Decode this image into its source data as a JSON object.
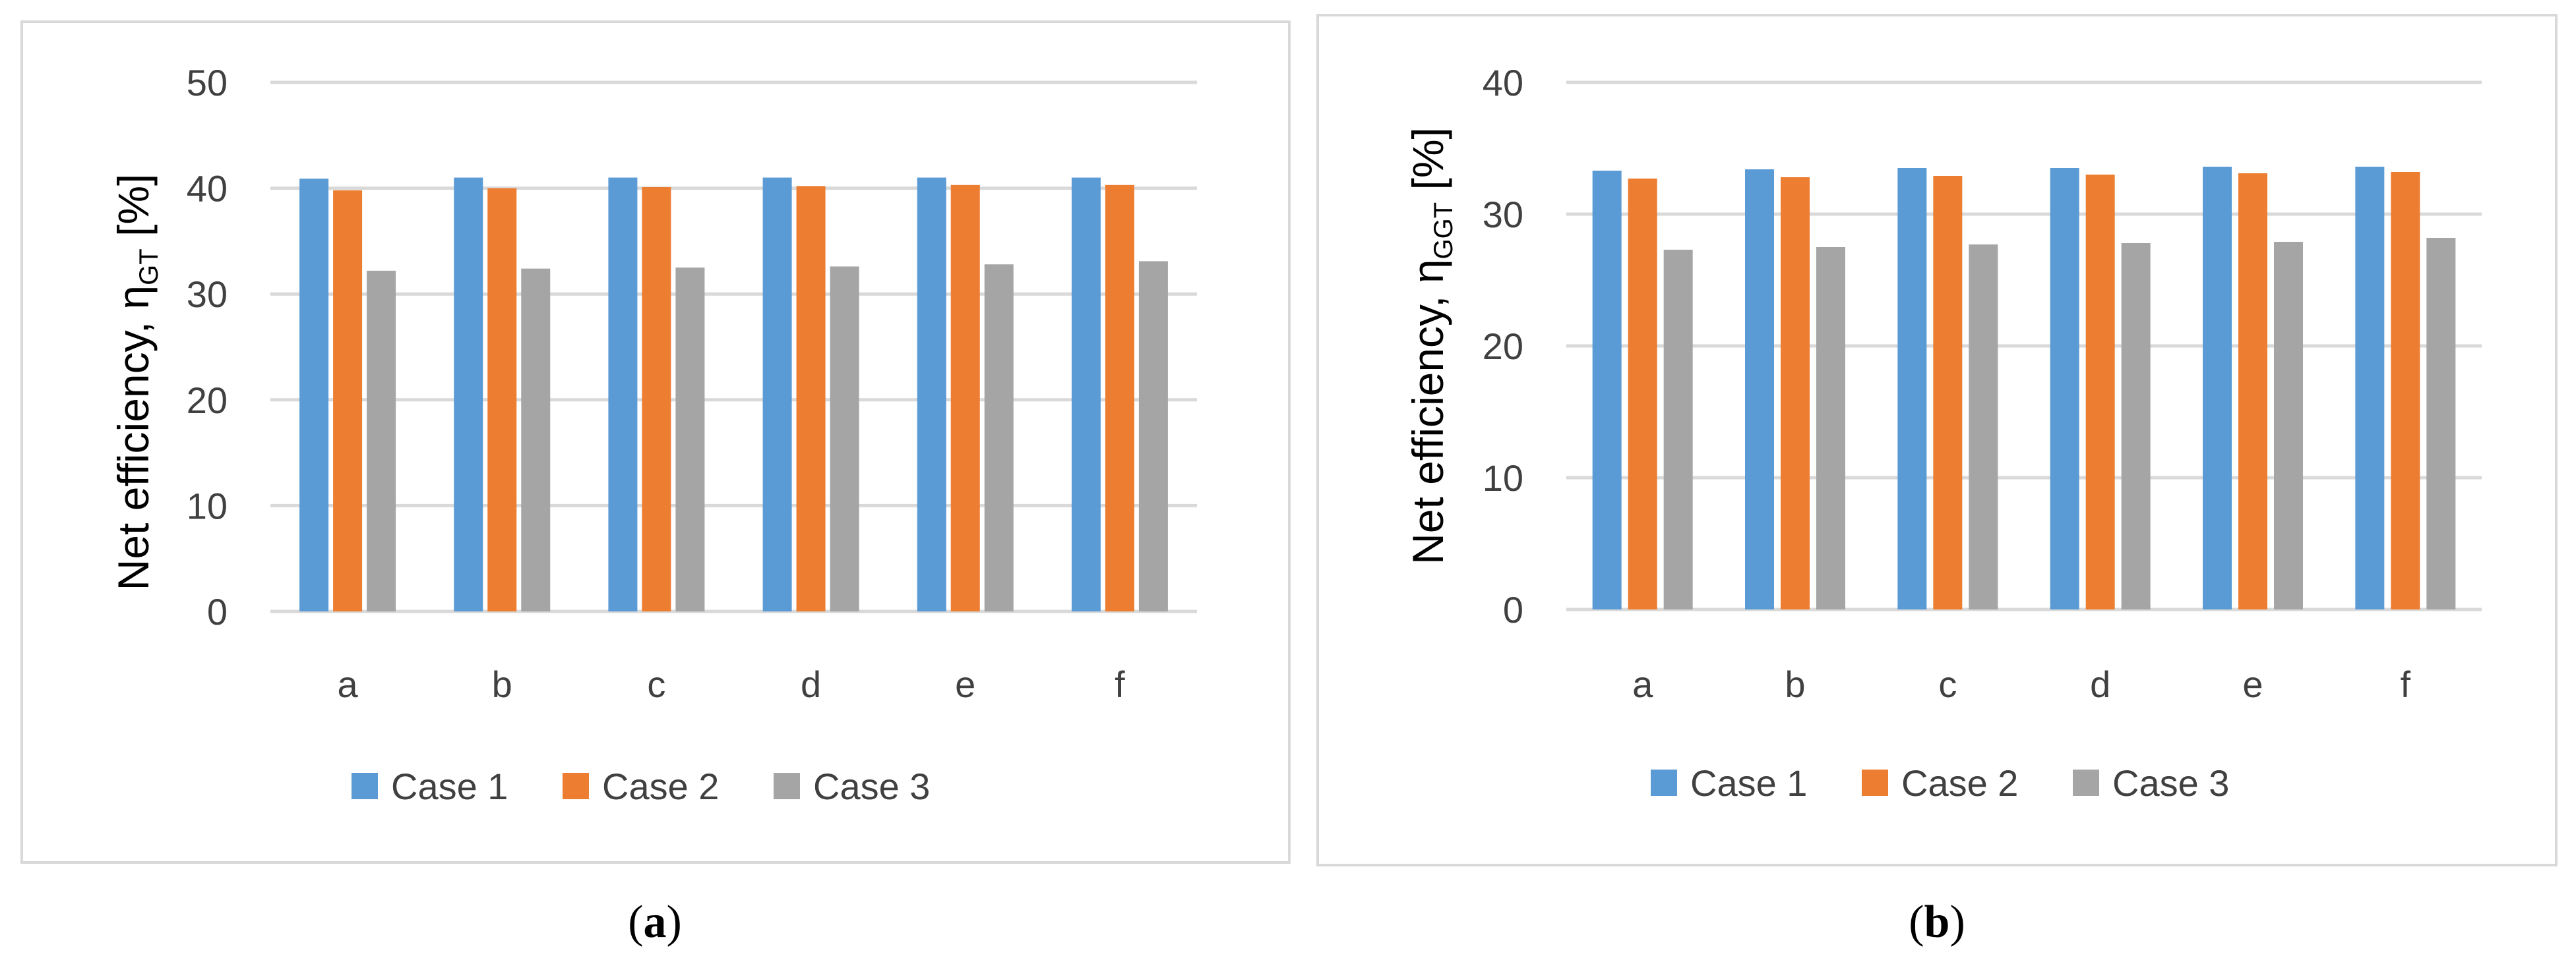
{
  "figure": {
    "panels": [
      {
        "caption_open": "(",
        "caption_letter": "a",
        "caption_close": ")",
        "ylabel": "Net efficiency, η",
        "ylabel_sub": "GT",
        "ylabel_unit": " [%]"
      },
      {
        "caption_open": "(",
        "caption_letter": "b",
        "caption_close": ")",
        "ylabel": "Net efficiency, η",
        "ylabel_sub": "GGT",
        "ylabel_unit": " [%]"
      }
    ]
  },
  "chart_data": [
    {
      "type": "bar",
      "title": "",
      "xlabel": "",
      "ylabel": "Net efficiency, ηGT [%]",
      "categories": [
        "a",
        "b",
        "c",
        "d",
        "e",
        "f"
      ],
      "ylim": [
        0,
        50
      ],
      "yticks": [
        0,
        10,
        20,
        30,
        40,
        50
      ],
      "grid": true,
      "legend_position": "bottom",
      "series": [
        {
          "name": "Case 1",
          "color": "#5b9bd5",
          "values": [
            40.9,
            41.0,
            41.0,
            41.0,
            41.0,
            41.0
          ]
        },
        {
          "name": "Case 2",
          "color": "#ed7d31",
          "values": [
            39.8,
            40.0,
            40.1,
            40.2,
            40.3,
            40.3
          ]
        },
        {
          "name": "Case 3",
          "color": "#a5a5a5",
          "values": [
            32.2,
            32.4,
            32.5,
            32.6,
            32.8,
            33.1
          ]
        }
      ]
    },
    {
      "type": "bar",
      "title": "",
      "xlabel": "",
      "ylabel": "Net efficiency, ηGGT [%]",
      "categories": [
        "a",
        "b",
        "c",
        "d",
        "e",
        "f"
      ],
      "ylim": [
        0,
        40
      ],
      "yticks": [
        0,
        10,
        20,
        30,
        40
      ],
      "grid": true,
      "legend_position": "bottom",
      "series": [
        {
          "name": "Case 1",
          "color": "#5b9bd5",
          "values": [
            33.3,
            33.4,
            33.5,
            33.5,
            33.6,
            33.6
          ]
        },
        {
          "name": "Case 2",
          "color": "#ed7d31",
          "values": [
            32.7,
            32.8,
            32.9,
            33.0,
            33.1,
            33.2
          ]
        },
        {
          "name": "Case 3",
          "color": "#a5a5a5",
          "values": [
            27.3,
            27.5,
            27.7,
            27.8,
            27.9,
            28.2
          ]
        }
      ]
    }
  ]
}
